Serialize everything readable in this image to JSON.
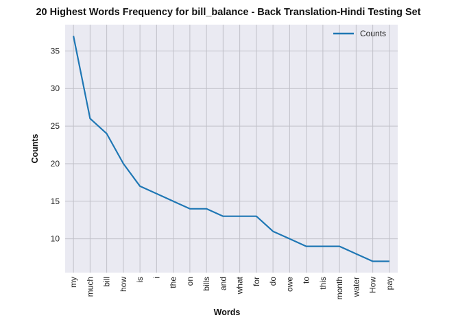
{
  "chart_data": {
    "type": "line",
    "title": "20 Highest Words Frequency for bill_balance - Back Translation-Hindi Testing Set",
    "xlabel": "Words",
    "ylabel": "Counts",
    "categories": [
      "my",
      "much",
      "bill",
      "how",
      "is",
      "i",
      "the",
      "on",
      "bills",
      "and",
      "what",
      "for",
      "do",
      "owe",
      "to",
      "this",
      "month",
      "water",
      "How",
      "pay"
    ],
    "series": [
      {
        "name": "Counts",
        "values": [
          37,
          26,
          24,
          20,
          17,
          16,
          15,
          14,
          14,
          13,
          13,
          13,
          11,
          10,
          9,
          9,
          9,
          8,
          7,
          7
        ],
        "color": "#1f77b4"
      }
    ],
    "ylim": [
      5.5,
      38.5
    ],
    "yticks": [
      10,
      15,
      20,
      25,
      30,
      35
    ],
    "grid": true,
    "legend_position": "top-right",
    "background_color": "#eaeaf2",
    "grid_color": "#c0c0c8"
  }
}
